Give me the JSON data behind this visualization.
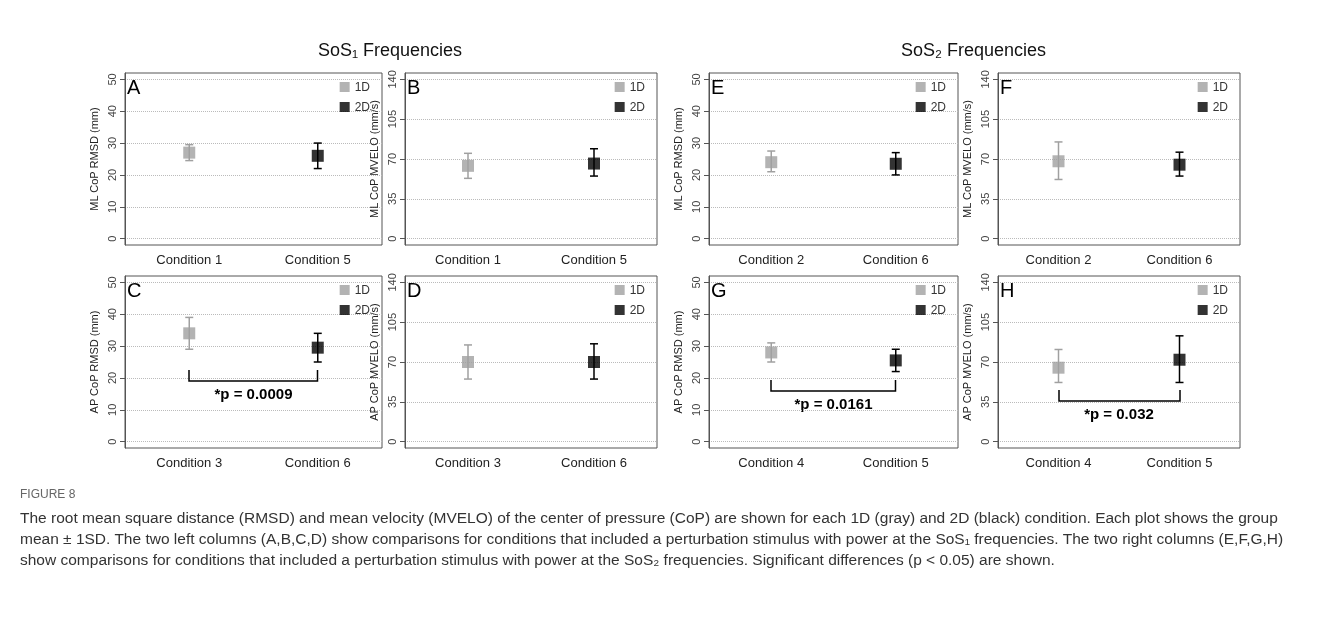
{
  "chart_data": [
    {
      "type": "scatter",
      "title": "SoS₁ Frequencies",
      "categories": [
        "Condition 1",
        "Condition 5"
      ],
      "ylabel": "ML CoP RMSD (mm)",
      "ylim": [
        -2,
        52
      ],
      "yticks": [
        0,
        10,
        20,
        30,
        40,
        50
      ],
      "grid": "y",
      "legend": "top right",
      "marker": "square",
      "annotations": [
        "A"
      ],
      "series": [
        {
          "name": "1D",
          "color": "#a0a0a0",
          "values": [
            27,
            null
          ],
          "errors": [
            [
              24.5,
              29.5
            ],
            null
          ]
        },
        {
          "name": "2D",
          "color": "#000000",
          "values": [
            null,
            26
          ],
          "errors": [
            null,
            [
              22,
              30
            ]
          ]
        }
      ]
    },
    {
      "type": "scatter",
      "categories": [
        "Condition 1",
        "Condition 5"
      ],
      "ylabel": "ML CoP MVELO (mm/s)",
      "ylim": [
        -5.6,
        145.6
      ],
      "yticks": [
        0,
        35,
        70,
        105,
        140
      ],
      "grid": "y",
      "legend": "top right",
      "marker": "square",
      "annotations": [
        "B"
      ],
      "series": [
        {
          "name": "1D",
          "color": "#a0a0a0",
          "values": [
            64,
            null
          ],
          "errors": [
            [
              53,
              75
            ],
            null
          ]
        },
        {
          "name": "2D",
          "color": "#000000",
          "values": [
            null,
            66
          ],
          "errors": [
            null,
            [
              55,
              79
            ]
          ]
        }
      ]
    },
    {
      "type": "scatter",
      "title": "SoS₂ Frequencies",
      "categories": [
        "Condition 2",
        "Condition 6"
      ],
      "ylabel": "ML CoP RMSD (mm)",
      "ylim": [
        -2,
        52
      ],
      "yticks": [
        0,
        10,
        20,
        30,
        40,
        50
      ],
      "grid": "y",
      "legend": "top right",
      "marker": "square",
      "annotations": [
        "E"
      ],
      "series": [
        {
          "name": "1D",
          "color": "#a0a0a0",
          "values": [
            24,
            null
          ],
          "errors": [
            [
              21,
              27.5
            ],
            null
          ]
        },
        {
          "name": "2D",
          "color": "#000000",
          "values": [
            null,
            23.5
          ],
          "errors": [
            null,
            [
              20,
              27
            ]
          ]
        }
      ]
    },
    {
      "type": "scatter",
      "categories": [
        "Condition 2",
        "Condition 6"
      ],
      "ylabel": "ML CoP MVELO (mm/s)",
      "ylim": [
        -5.6,
        145.6
      ],
      "yticks": [
        0,
        35,
        70,
        105,
        140
      ],
      "grid": "y",
      "legend": "top right",
      "marker": "square",
      "annotations": [
        "F"
      ],
      "series": [
        {
          "name": "1D",
          "color": "#a0a0a0",
          "values": [
            68,
            null
          ],
          "errors": [
            [
              52,
              85
            ],
            null
          ]
        },
        {
          "name": "2D",
          "color": "#000000",
          "values": [
            null,
            65
          ],
          "errors": [
            null,
            [
              55,
              76
            ]
          ]
        }
      ]
    },
    {
      "type": "scatter",
      "categories": [
        "Condition 3",
        "Condition 6"
      ],
      "ylabel": "AP CoP RMSD (mm)",
      "ylim": [
        -2,
        52
      ],
      "yticks": [
        0,
        10,
        20,
        30,
        40,
        50
      ],
      "grid": "y",
      "legend": "top right",
      "marker": "square",
      "annotations": [
        "C",
        "*p = 0.0009"
      ],
      "series": [
        {
          "name": "1D",
          "color": "#a0a0a0",
          "values": [
            34,
            null
          ],
          "errors": [
            [
              29,
              39
            ],
            null
          ]
        },
        {
          "name": "2D",
          "color": "#000000",
          "values": [
            null,
            29.5
          ],
          "errors": [
            null,
            [
              25,
              34
            ]
          ]
        }
      ]
    },
    {
      "type": "scatter",
      "categories": [
        "Condition 3",
        "Condition 6"
      ],
      "ylabel": "AP CoP MVELO (mm/s)",
      "ylim": [
        -5.6,
        145.6
      ],
      "yticks": [
        0,
        35,
        70,
        105,
        140
      ],
      "grid": "y",
      "legend": "top right",
      "marker": "square",
      "annotations": [
        "D"
      ],
      "series": [
        {
          "name": "1D",
          "color": "#a0a0a0",
          "values": [
            70,
            null
          ],
          "errors": [
            [
              55,
              85
            ],
            null
          ]
        },
        {
          "name": "2D",
          "color": "#000000",
          "values": [
            null,
            70
          ],
          "errors": [
            null,
            [
              55,
              86
            ]
          ]
        }
      ]
    },
    {
      "type": "scatter",
      "categories": [
        "Condition 4",
        "Condition 5"
      ],
      "ylabel": "AP CoP RMSD (mm)",
      "ylim": [
        -2,
        52
      ],
      "yticks": [
        0,
        10,
        20,
        30,
        40,
        50
      ],
      "grid": "y",
      "legend": "top right",
      "marker": "square",
      "annotations": [
        "G",
        "*p = 0.0161"
      ],
      "series": [
        {
          "name": "1D",
          "color": "#a0a0a0",
          "values": [
            28,
            null
          ],
          "errors": [
            [
              25,
              31
            ],
            null
          ]
        },
        {
          "name": "2D",
          "color": "#000000",
          "values": [
            null,
            25.5
          ],
          "errors": [
            null,
            [
              22,
              29
            ]
          ]
        }
      ]
    },
    {
      "type": "scatter",
      "categories": [
        "Condition 4",
        "Condition 5"
      ],
      "ylabel": "AP CoP MVELO (mm/s)",
      "ylim": [
        -5.6,
        145.6
      ],
      "yticks": [
        0,
        35,
        70,
        105,
        140
      ],
      "grid": "y",
      "legend": "top right",
      "marker": "square",
      "annotations": [
        "H",
        "*p = 0.032"
      ],
      "series": [
        {
          "name": "1D",
          "color": "#a0a0a0",
          "values": [
            65,
            null
          ],
          "errors": [
            [
              52,
              81
            ],
            null
          ]
        },
        {
          "name": "2D",
          "color": "#000000",
          "values": [
            null,
            72
          ],
          "errors": [
            null,
            [
              52,
              93
            ]
          ]
        }
      ]
    },
    {
      "type": "other",
      "title": "FIGURE 8",
      "annotations": [
        "The root mean square distance (RMSD) and mean velocity (MVELO) of the center of pressure (CoP) are shown for each 1D (gray) and 2D (black) condition. Each plot shows the group mean ± 1SD. The two left columns (A,B,C,D) show comparisons for conditions that included a perturbation stimulus with power at the SoS₁ frequencies. The two right columns (E,F,G,H) show comparisons for conditions that included a perturbation stimulus with power at the SoS₂ frequencies. Significant differences (p < 0.05) are shown."
      ]
    }
  ]
}
